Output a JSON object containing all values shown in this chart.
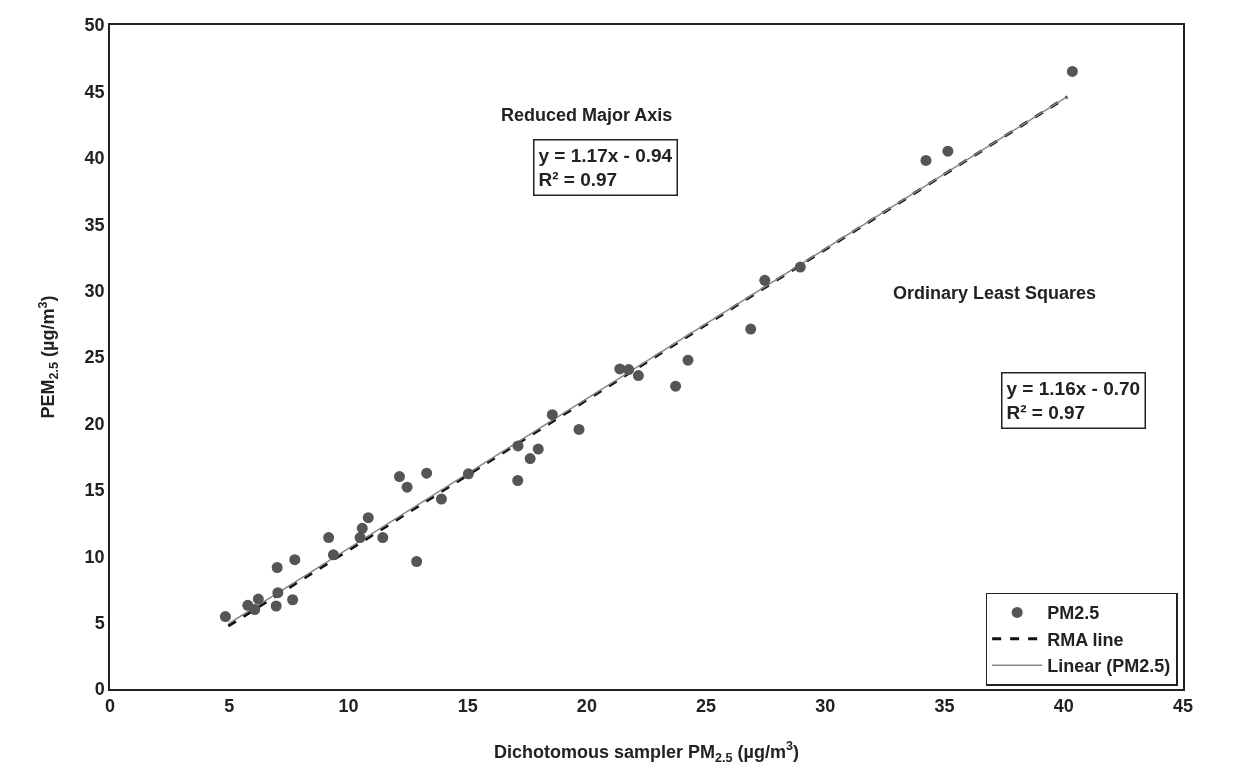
{
  "chart_data": {
    "type": "scatter",
    "xlabel": "Dichotomous sampler PM$_{2.5}$ (µg/m$^{3}$)",
    "ylabel": "PEM$_{2.5}$ (µg/m$^{3}$)",
    "xlim": [
      0,
      45
    ],
    "xticks": [
      0,
      5,
      10,
      15,
      20,
      25,
      30,
      35,
      40,
      45
    ],
    "ylim": [
      0,
      50
    ],
    "yticks": [
      0,
      5,
      10,
      15,
      20,
      25,
      30,
      35,
      40,
      45,
      50
    ],
    "grid": false,
    "legend": "bottom right",
    "series": [
      {
        "name": "PM2.5",
        "marker": "circle",
        "color": "#555555",
        "x": [
          4.84,
          5.78,
          6.07,
          6.22,
          6.97,
          7.04,
          7.01,
          7.66,
          7.75,
          9.17,
          9.37,
          10.49,
          10.58,
          10.83,
          11.44,
          12.14,
          12.46,
          12.86,
          13.28,
          13.9,
          15.03,
          17.11,
          17.1,
          17.62,
          17.96,
          18.55,
          19.67,
          21.38,
          21.75,
          22.16,
          23.72,
          24.24,
          26.87,
          27.46,
          28.95,
          34.22,
          35.14,
          40.36
        ],
        "values": [
          5.45,
          6.3,
          5.98,
          6.77,
          6.25,
          7.25,
          9.15,
          6.72,
          9.74,
          11.4,
          10.1,
          11.4,
          12.1,
          12.9,
          11.4,
          16.0,
          15.2,
          9.6,
          16.25,
          14.3,
          16.2,
          18.3,
          15.7,
          17.35,
          18.07,
          20.66,
          19.55,
          24.1,
          24.05,
          23.6,
          22.8,
          24.76,
          27.1,
          30.77,
          31.77,
          39.8,
          40.5,
          46.5
        ]
      },
      {
        "name": "RMA line",
        "type": "line",
        "line_style": "dashed",
        "marker": "none",
        "color": "#111111",
        "x": [
          4.96,
          40.15
        ],
        "values": [
          4.74,
          44.6
        ]
      },
      {
        "name": "Linear (PM2.5)",
        "type": "line",
        "line_style": "solid",
        "marker": "none",
        "color": "#888888",
        "x": [
          4.96,
          40.15
        ],
        "values": [
          4.9,
          44.6
        ]
      }
    ],
    "annotations": [
      "Reduced Major Axis",
      "y = 1.17x - 0.94\nR² = 0.97",
      "Ordinary Least Squares",
      "y = 1.16x - 0.70\nR² = 0.97"
    ]
  }
}
